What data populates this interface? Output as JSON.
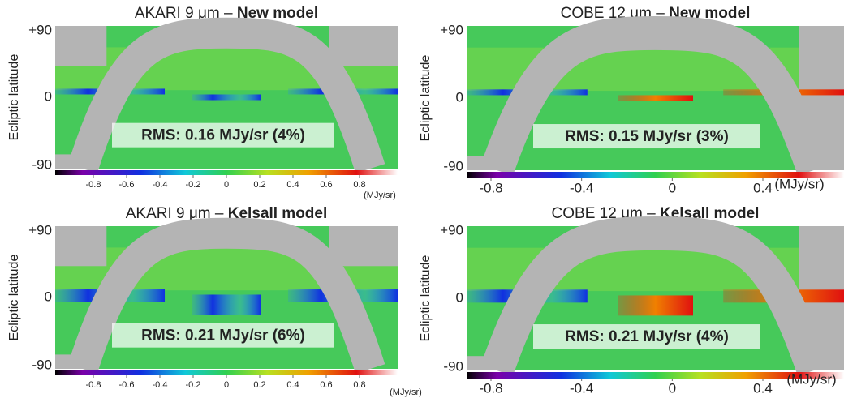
{
  "panels": [
    {
      "title": "AKARI 9 μm – ",
      "title_bold": "New model",
      "y_label": "Ecliptic latitude",
      "y_ticks": [
        "+90",
        "0",
        "-90"
      ],
      "rms": "RMS: 0.16 MJy/sr (4%)",
      "colorbar": {
        "ticks": [
          -0.8,
          -0.6,
          -0.4,
          -0.2,
          0,
          0.2,
          0.4,
          0.6,
          0.8
        ],
        "unit": "(MJy/sr)"
      }
    },
    {
      "title": "COBE 12 μm – ",
      "title_bold": "New model",
      "y_label": "Ecliptic latitude",
      "y_ticks": [
        "+90",
        "0",
        "-90"
      ],
      "rms": "RMS: 0.15 MJy/sr (3%)",
      "colorbar": {
        "ticks": [
          -0.8,
          -0.4,
          0,
          0.4
        ],
        "unit": "(MJy/sr)"
      }
    },
    {
      "title": "AKARI 9 μm – ",
      "title_bold": "Kelsall model",
      "y_label": "Ecliptic latitude",
      "y_ticks": [
        "+90",
        "0",
        "-90"
      ],
      "rms": "RMS: 0.21 MJy/sr (6%)",
      "colorbar": {
        "ticks": [
          -0.8,
          -0.6,
          -0.4,
          -0.2,
          0,
          0.2,
          0.4,
          0.6,
          0.8
        ],
        "unit": "(MJy/sr)"
      }
    },
    {
      "title": "COBE 12 μm – ",
      "title_bold": "Kelsall model",
      "y_label": "Ecliptic latitude",
      "y_ticks": [
        "+90",
        "0",
        "-90"
      ],
      "rms": "RMS: 0.21 MJy/sr (4%)",
      "colorbar": {
        "ticks": [
          -0.8,
          -0.4,
          0,
          0.4
        ],
        "unit": "(MJy/sr)"
      }
    }
  ]
}
